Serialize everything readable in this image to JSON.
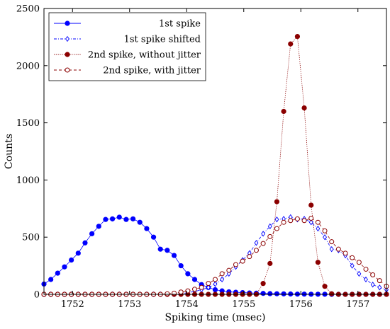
{
  "chart_data": {
    "type": "line",
    "title": "",
    "xlabel": "Spiking time (msec)",
    "ylabel": "Counts",
    "xlim": [
      1751.5,
      1757.5
    ],
    "ylim": [
      0,
      2500
    ],
    "xticks": [
      1752,
      1753,
      1754,
      1755,
      1756,
      1757
    ],
    "yticks": [
      0,
      500,
      1000,
      1500,
      2000,
      2500
    ],
    "grid": false,
    "legend_position": "top-left",
    "series": [
      {
        "name": "1st spike",
        "color": "#0000ff",
        "line": "solid",
        "marker": "filled-circle",
        "x": [
          1751.5,
          1751.62,
          1751.74,
          1751.86,
          1751.98,
          1752.1,
          1752.22,
          1752.34,
          1752.46,
          1752.58,
          1752.7,
          1752.82,
          1752.94,
          1753.06,
          1753.18,
          1753.3,
          1753.42,
          1753.54,
          1753.66,
          1753.78,
          1753.9,
          1754.02,
          1754.14,
          1754.26,
          1754.38,
          1754.5,
          1754.62,
          1754.74,
          1754.86,
          1754.98,
          1755.1,
          1755.22,
          1755.34,
          1755.46,
          1755.58,
          1755.7,
          1755.82,
          1755.94,
          1756.06,
          1756.18,
          1756.3,
          1756.42,
          1756.54,
          1756.66,
          1756.78,
          1756.9,
          1757.02,
          1757.14,
          1757.26,
          1757.38,
          1757.5
        ],
        "y": [
          90,
          130,
          185,
          240,
          300,
          360,
          450,
          530,
          595,
          655,
          660,
          675,
          655,
          660,
          630,
          575,
          500,
          395,
          385,
          340,
          250,
          180,
          130,
          85,
          60,
          40,
          30,
          22,
          18,
          15,
          12,
          10,
          8,
          6,
          5,
          4,
          3,
          2,
          2,
          1,
          1,
          1,
          0,
          0,
          0,
          0,
          0,
          0,
          0,
          0,
          0
        ]
      },
      {
        "name": "1st spike shifted",
        "color": "#0000ff",
        "line": "dash-dot",
        "marker": "open-diamond",
        "x": [
          1751.5,
          1751.62,
          1751.74,
          1751.86,
          1751.98,
          1752.1,
          1752.22,
          1752.34,
          1752.46,
          1752.58,
          1752.7,
          1752.82,
          1752.94,
          1753.06,
          1753.18,
          1753.3,
          1753.42,
          1753.54,
          1753.66,
          1753.78,
          1753.9,
          1754.02,
          1754.14,
          1754.26,
          1754.38,
          1754.5,
          1754.62,
          1754.74,
          1754.86,
          1754.98,
          1755.1,
          1755.22,
          1755.34,
          1755.46,
          1755.58,
          1755.7,
          1755.82,
          1755.94,
          1756.06,
          1756.18,
          1756.3,
          1756.42,
          1756.54,
          1756.66,
          1756.78,
          1756.9,
          1757.02,
          1757.14,
          1757.26,
          1757.38,
          1757.5
        ],
        "y": [
          0,
          0,
          0,
          0,
          0,
          0,
          0,
          0,
          0,
          0,
          0,
          0,
          0,
          0,
          0,
          0,
          0,
          0,
          0,
          0,
          5,
          15,
          25,
          40,
          60,
          90,
          130,
          180,
          240,
          300,
          360,
          450,
          530,
          595,
          655,
          660,
          675,
          655,
          660,
          630,
          575,
          500,
          395,
          385,
          340,
          250,
          180,
          130,
          85,
          60,
          40
        ]
      },
      {
        "name": "2nd spike, without jitter",
        "color": "#8b0000",
        "line": "dotted",
        "marker": "filled-circle",
        "x": [
          1751.5,
          1751.62,
          1751.74,
          1751.86,
          1751.98,
          1752.1,
          1752.22,
          1752.34,
          1752.46,
          1752.58,
          1752.7,
          1752.82,
          1752.94,
          1753.06,
          1753.18,
          1753.3,
          1753.42,
          1753.54,
          1753.66,
          1753.78,
          1753.9,
          1754.02,
          1754.14,
          1754.26,
          1754.38,
          1754.5,
          1754.62,
          1754.74,
          1754.86,
          1754.98,
          1755.1,
          1755.22,
          1755.34,
          1755.46,
          1755.58,
          1755.7,
          1755.82,
          1755.94,
          1756.06,
          1756.18,
          1756.3,
          1756.42,
          1756.54,
          1756.66,
          1756.78,
          1756.9,
          1757.02,
          1757.14,
          1757.26,
          1757.38,
          1757.5
        ],
        "y": [
          0,
          0,
          0,
          0,
          0,
          0,
          0,
          0,
          0,
          0,
          0,
          0,
          0,
          0,
          0,
          0,
          0,
          0,
          0,
          0,
          0,
          0,
          0,
          0,
          0,
          0,
          0,
          0,
          0,
          0,
          0,
          0,
          95,
          270,
          810,
          1600,
          2190,
          2255,
          1630,
          780,
          280,
          70,
          5,
          0,
          0,
          0,
          0,
          0,
          0,
          0,
          0
        ]
      },
      {
        "name": "2nd spike, with jitter",
        "color": "#8b0000",
        "line": "dashed",
        "marker": "open-circle",
        "x": [
          1751.5,
          1751.62,
          1751.74,
          1751.86,
          1751.98,
          1752.1,
          1752.22,
          1752.34,
          1752.46,
          1752.58,
          1752.7,
          1752.82,
          1752.94,
          1753.06,
          1753.18,
          1753.3,
          1753.42,
          1753.54,
          1753.66,
          1753.78,
          1753.9,
          1754.02,
          1754.14,
          1754.26,
          1754.38,
          1754.5,
          1754.62,
          1754.74,
          1754.86,
          1754.98,
          1755.1,
          1755.22,
          1755.34,
          1755.46,
          1755.58,
          1755.7,
          1755.82,
          1755.94,
          1756.06,
          1756.18,
          1756.3,
          1756.42,
          1756.54,
          1756.66,
          1756.78,
          1756.9,
          1757.02,
          1757.14,
          1757.26,
          1757.38,
          1757.5
        ],
        "y": [
          0,
          0,
          0,
          0,
          0,
          0,
          0,
          0,
          0,
          0,
          0,
          0,
          0,
          0,
          0,
          0,
          0,
          0,
          5,
          10,
          20,
          30,
          45,
          60,
          95,
          130,
          180,
          210,
          260,
          290,
          330,
          385,
          445,
          505,
          575,
          630,
          645,
          660,
          645,
          665,
          630,
          555,
          460,
          395,
          360,
          320,
          280,
          220,
          170,
          120,
          70
        ]
      }
    ]
  }
}
